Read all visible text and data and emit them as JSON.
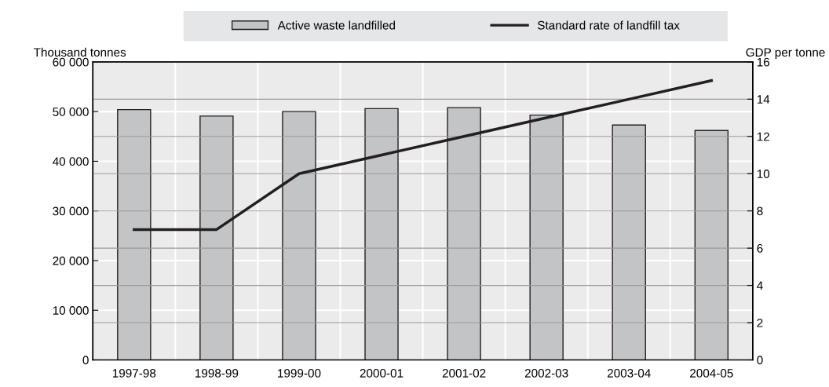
{
  "chart_data": {
    "type": "bar",
    "ylabel": "Thousand tonnes",
    "y2label": "GDP per tonne",
    "categories": [
      "1997-98",
      "1998-99",
      "1999-00",
      "2000-01",
      "2001-02",
      "2002-03",
      "2003-04",
      "2004-05"
    ],
    "series": [
      {
        "name": "Active waste landfilled",
        "color": "#c3c4c6",
        "values": [
          50400,
          49100,
          50000,
          50600,
          50800,
          49300,
          47300,
          46200
        ]
      },
      {
        "name": "Standard rate of landfill tax",
        "type": "line",
        "axis": "y2",
        "color": "#231f20",
        "values": [
          7,
          7,
          10,
          11,
          12,
          13,
          14,
          15
        ]
      }
    ],
    "ylim": [
      0,
      60000
    ],
    "yticks": [
      {
        "value": 0,
        "label": "0"
      },
      {
        "value": 10000,
        "label": "10 000"
      },
      {
        "value": 20000,
        "label": "20 000"
      },
      {
        "value": 30000,
        "label": "30 000"
      },
      {
        "value": 40000,
        "label": "40 000"
      },
      {
        "value": 50000,
        "label": "50 000"
      },
      {
        "value": 60000,
        "label": "60 000"
      }
    ],
    "y2lim": [
      0,
      16
    ],
    "y2ticks": [
      0,
      2,
      4,
      6,
      8,
      10,
      12,
      14,
      16
    ],
    "grid": true,
    "legend": "top",
    "marker": "none",
    "line_style": "solid"
  }
}
